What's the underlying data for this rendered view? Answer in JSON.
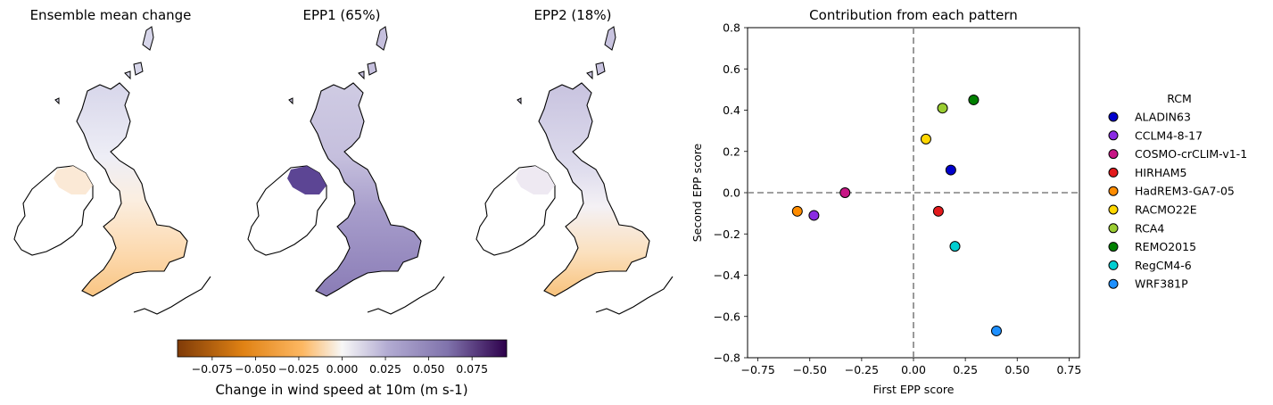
{
  "maps": {
    "titles": [
      "Ensemble mean change",
      "EPP1 (65%)",
      "EPP2 (18%)"
    ]
  },
  "colorbar": {
    "label": "Change in wind speed at 10m (m s-1)",
    "min": -0.095,
    "max": 0.095,
    "ticks": [
      -0.075,
      -0.05,
      -0.025,
      0.0,
      0.025,
      0.05,
      0.075
    ],
    "tick_labels": [
      "−0.075",
      "−0.050",
      "−0.025",
      "0.000",
      "0.025",
      "0.050",
      "0.075"
    ],
    "colormap": "PuOr",
    "colors": [
      "#7f3b08",
      "#e08214",
      "#fdb863",
      "#f7f7f7",
      "#b2abd2",
      "#8073ac",
      "#2d004b"
    ]
  },
  "chart_data": {
    "type": "scatter",
    "title": "Contribution from each pattern",
    "xlabel": "First EPP score",
    "ylabel": "Second EPP score",
    "xlim": [
      -0.8,
      0.8
    ],
    "ylim": [
      -0.8,
      0.8
    ],
    "xticks": [
      -0.75,
      -0.5,
      -0.25,
      0.0,
      0.25,
      0.5,
      0.75
    ],
    "xtick_labels": [
      "−0.75",
      "−0.50",
      "−0.25",
      "0.00",
      "0.25",
      "0.50",
      "0.75"
    ],
    "yticks": [
      -0.8,
      -0.6,
      -0.4,
      -0.2,
      0.0,
      0.2,
      0.4,
      0.6,
      0.8
    ],
    "ytick_labels": [
      "−0.8",
      "−0.6",
      "−0.4",
      "−0.2",
      "0.0",
      "0.2",
      "0.4",
      "0.6",
      "0.8"
    ],
    "grid": false,
    "reference_lines": {
      "x": 0.0,
      "y": 0.0,
      "style": "dashed",
      "color": "#808080"
    },
    "legend": {
      "title": "RCM",
      "placement": "right"
    },
    "series": [
      {
        "name": "ALADIN63",
        "color": "#0000cd",
        "x": 0.18,
        "y": 0.11
      },
      {
        "name": "CCLM4-8-17",
        "color": "#8a2be2",
        "x": -0.48,
        "y": -0.11
      },
      {
        "name": "COSMO-crCLIM-v1-1",
        "color": "#c71585",
        "x": -0.33,
        "y": 0.0
      },
      {
        "name": "HIRHAM5",
        "color": "#e31a1c",
        "x": 0.12,
        "y": -0.09
      },
      {
        "name": "HadREM3-GA7-05",
        "color": "#ff8c00",
        "x": -0.56,
        "y": -0.09
      },
      {
        "name": "RACMO22E",
        "color": "#ffd700",
        "x": 0.06,
        "y": 0.26
      },
      {
        "name": "RCA4",
        "color": "#9acd32",
        "x": 0.14,
        "y": 0.41
      },
      {
        "name": "REMO2015",
        "color": "#008000",
        "x": 0.29,
        "y": 0.45
      },
      {
        "name": "RegCM4-6",
        "color": "#00ced1",
        "x": 0.2,
        "y": -0.26
      },
      {
        "name": "WRF381P",
        "color": "#1e90ff",
        "x": 0.4,
        "y": -0.67
      }
    ]
  }
}
